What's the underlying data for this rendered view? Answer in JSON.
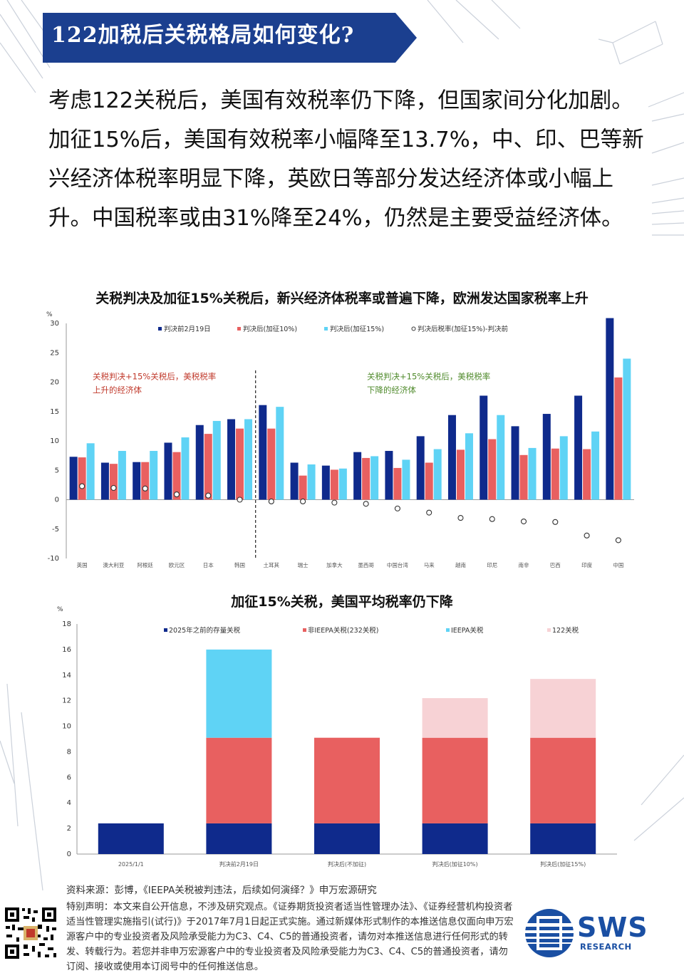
{
  "banner": {
    "title": "122加税后关税格局如何变化?"
  },
  "intro": {
    "text": "考虑122关税后，美国有效税率仍下降，但国家间分化加剧。加征15%后，美国有效税率小幅降至13.7%，中、印、巴等新兴经济体税率明显下降，英欧日等部分发达经济体或小幅上升。中国税率或由31%降至24%，仍然是主要受益经济体。"
  },
  "chart_data": [
    {
      "type": "bar",
      "title": "关税判决及加征15%关税后，新兴经济体税率或普遍下降，欧洲发达国家税率上升",
      "ylabel": "%",
      "ylim": [
        -10,
        30
      ],
      "yticks": [
        30,
        25,
        20,
        15,
        10,
        5,
        0,
        -5,
        -10
      ],
      "categories": [
        "英国",
        "澳大利亚",
        "阿根廷",
        "欧元区",
        "日本",
        "韩国",
        "土耳其",
        "瑞士",
        "加拿大",
        "墨西哥",
        "中国台湾",
        "马来",
        "越南",
        "印尼",
        "南非",
        "巴西",
        "印度",
        "中国"
      ],
      "series": [
        {
          "name": "判决前2月19日",
          "color": "#0f2a8c",
          "values": [
            7.3,
            6.3,
            6.4,
            9.7,
            12.7,
            13.7,
            16.1,
            6.3,
            5.8,
            8.1,
            8.3,
            10.8,
            14.4,
            17.7,
            12.5,
            14.6,
            17.7,
            30.9
          ]
        },
        {
          "name": "判决后(加征10%)",
          "color": "#e86060",
          "values": [
            7.2,
            6.1,
            6.4,
            8.1,
            11.2,
            12.1,
            12.1,
            4.1,
            5.1,
            7.1,
            5.4,
            6.3,
            8.5,
            10.3,
            7.6,
            8.7,
            8.6,
            20.8
          ]
        },
        {
          "name": "判决后(加征15%)",
          "color": "#5fd3f5",
          "values": [
            9.6,
            8.3,
            8.3,
            10.6,
            13.4,
            13.7,
            15.8,
            6.0,
            5.3,
            7.4,
            6.8,
            8.6,
            11.3,
            14.4,
            8.8,
            10.8,
            11.6,
            24.0
          ]
        },
        {
          "name": "判决后税率(加征15%)-判决前",
          "color": "#333333",
          "marker": "circle-open",
          "values": [
            2.3,
            2.0,
            1.9,
            0.9,
            0.7,
            0.0,
            -0.3,
            -0.3,
            -0.5,
            -0.7,
            -1.5,
            -2.2,
            -3.1,
            -3.3,
            -3.7,
            -3.8,
            -6.1,
            -6.9
          ]
        }
      ],
      "divider_after_index": 5,
      "annotations": [
        {
          "text": "关税判决+15%关税后，美税税率上升的经济体",
          "color": "#c0392b"
        },
        {
          "text": "关税判决+15%关税后，美税税率下降的经济体",
          "color": "#4f8a2b"
        }
      ],
      "legend_position": "top"
    },
    {
      "type": "bar",
      "stacked": true,
      "title": "加征15%关税，美国平均税率仍下降",
      "ylabel": "%",
      "ylim": [
        0,
        18
      ],
      "yticks": [
        18,
        16,
        14,
        12,
        10,
        8,
        6,
        4,
        2,
        0
      ],
      "categories": [
        "2025/1/1",
        "判决前2月19日",
        "判决后(不加征)",
        "判决后(加征10%)",
        "判决后(加征15%)"
      ],
      "series": [
        {
          "name": "2025年之前的存量关税",
          "color": "#0f2a8c",
          "values": [
            2.4,
            2.4,
            2.4,
            2.4,
            2.4
          ]
        },
        {
          "name": "非IEEPA关税(232关税)",
          "color": "#e86060",
          "values": [
            0,
            6.7,
            6.7,
            6.7,
            6.7
          ]
        },
        {
          "name": "IEEPA关税",
          "color": "#5fd3f5",
          "values": [
            0,
            6.9,
            0,
            0,
            0
          ]
        },
        {
          "name": "122关税",
          "color": "#f7d2d5",
          "values": [
            0,
            0,
            0,
            3.1,
            4.6
          ]
        }
      ],
      "legend_position": "top"
    }
  ],
  "footer": {
    "source": "资料来源：彭博，《IEEPA关税被判违法，后续如何演绎？》申万宏源研究",
    "disclaimer": "特别声明：本文来自公开信息，不涉及研究观点。《证券期货投资者适当性管理办法》、《证券经营机构投资者适当性管理实施指引(试行)》于2017年7月1日起正式实施。通过新媒体形式制作的本推送信息仅面向申万宏源客户中的专业投资者及风险承受能力为C3、C4、C5的普通投资者，请勿对本推送信息进行任何形式的转发、转载行为。若您并非申万宏源客户中的专业投资者及风险承受能力为C3、C4、C5的普通投资者，请勿订阅、接收或使用本订阅号中的任何推送信息。"
  },
  "logo": {
    "name": "SWS",
    "subtitle": "RESEARCH"
  }
}
